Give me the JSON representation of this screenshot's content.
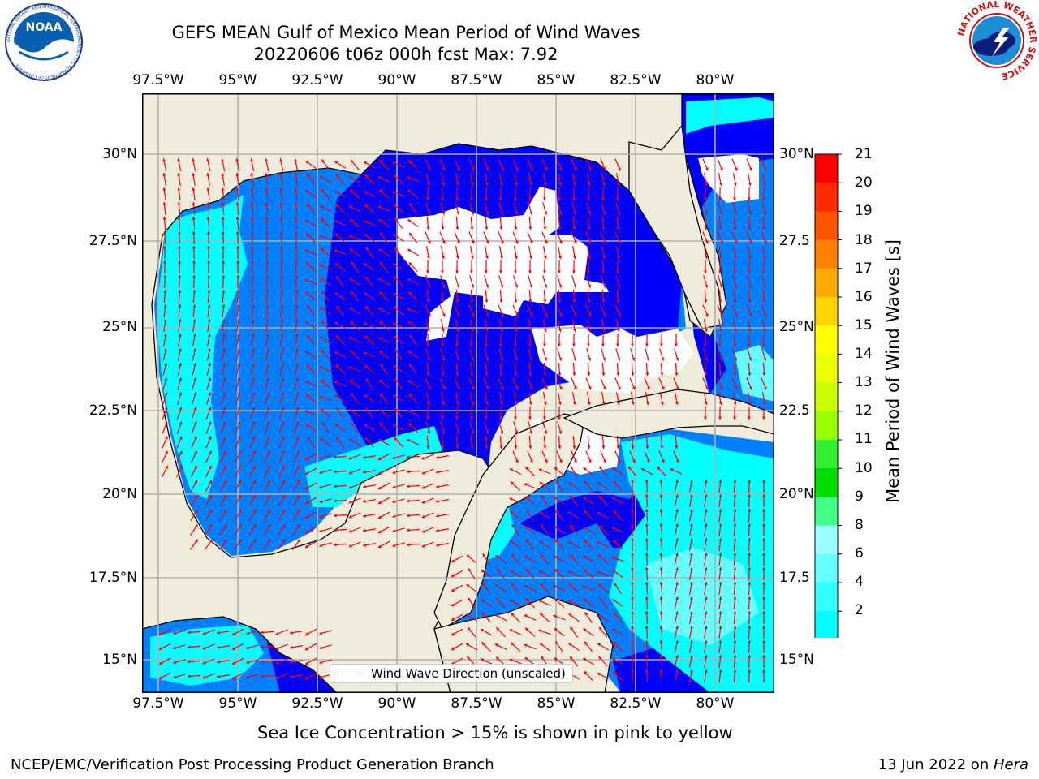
{
  "title": {
    "line1": "GEFS MEAN Gulf of Mexico Mean Period of Wind Waves",
    "line2": "20220606 t06z 000h fcst   Max: 7.92"
  },
  "logos": {
    "noaa_text": "NOAA",
    "noaa_ring": "NATIONAL OCEANIC AND ATMOSPHERIC ADMINISTRATION • U.S. DEPARTMENT OF COMMERCE",
    "nws_ring": "NATIONAL WEATHER SERVICE"
  },
  "map": {
    "lon_ticks": [
      "97.5°W",
      "95°W",
      "92.5°W",
      "90°W",
      "87.5°W",
      "85°W",
      "82.5°W",
      "80°W"
    ],
    "lat_ticks_left": [
      "30°N",
      "27.5°N",
      "25°N",
      "22.5°N",
      "20°N",
      "17.5°N",
      "15°N"
    ],
    "lat_ticks_right": [
      "30°N",
      "27.5",
      "25°N",
      "22.5",
      "20°N",
      "17.5",
      "15°N"
    ],
    "legend_label": "Wind Wave Direction (unscaled)",
    "colors": {
      "land": "#efecdc",
      "blue": "#0000ff",
      "mid_blue": "#0080ff",
      "cyan": "#00ffff",
      "light_cyan": "#66ffff",
      "arrow": "#ff0000",
      "grid": "#b0b0b0"
    }
  },
  "colorbar": {
    "label": "Mean Period of Wind Waves [s]",
    "ticks": [
      "21",
      "20",
      "19",
      "18",
      "17",
      "16",
      "15",
      "14",
      "13",
      "12",
      "11",
      "10",
      "9",
      "8",
      "6",
      "4",
      "2"
    ],
    "colors": [
      "#ff0000",
      "#ff2a00",
      "#ff5500",
      "#ff7f00",
      "#ffaa00",
      "#ffd400",
      "#ffff00",
      "#ecff00",
      "#ccff00",
      "#99ff00",
      "#33ee33",
      "#00dd00",
      "#44ff88",
      "#99ffff",
      "#66ffff",
      "#33ffff",
      "#00ffff",
      "#0080ff"
    ],
    "extend_color": "#0000ff"
  },
  "note": "Sea Ice Concentration > 15% is shown in pink to yellow",
  "footer": {
    "left": "NCEP/EMC/Verification Post Processing Product Generation Branch",
    "right_date": "13 Jun 2022 on ",
    "right_host": "Hera"
  }
}
